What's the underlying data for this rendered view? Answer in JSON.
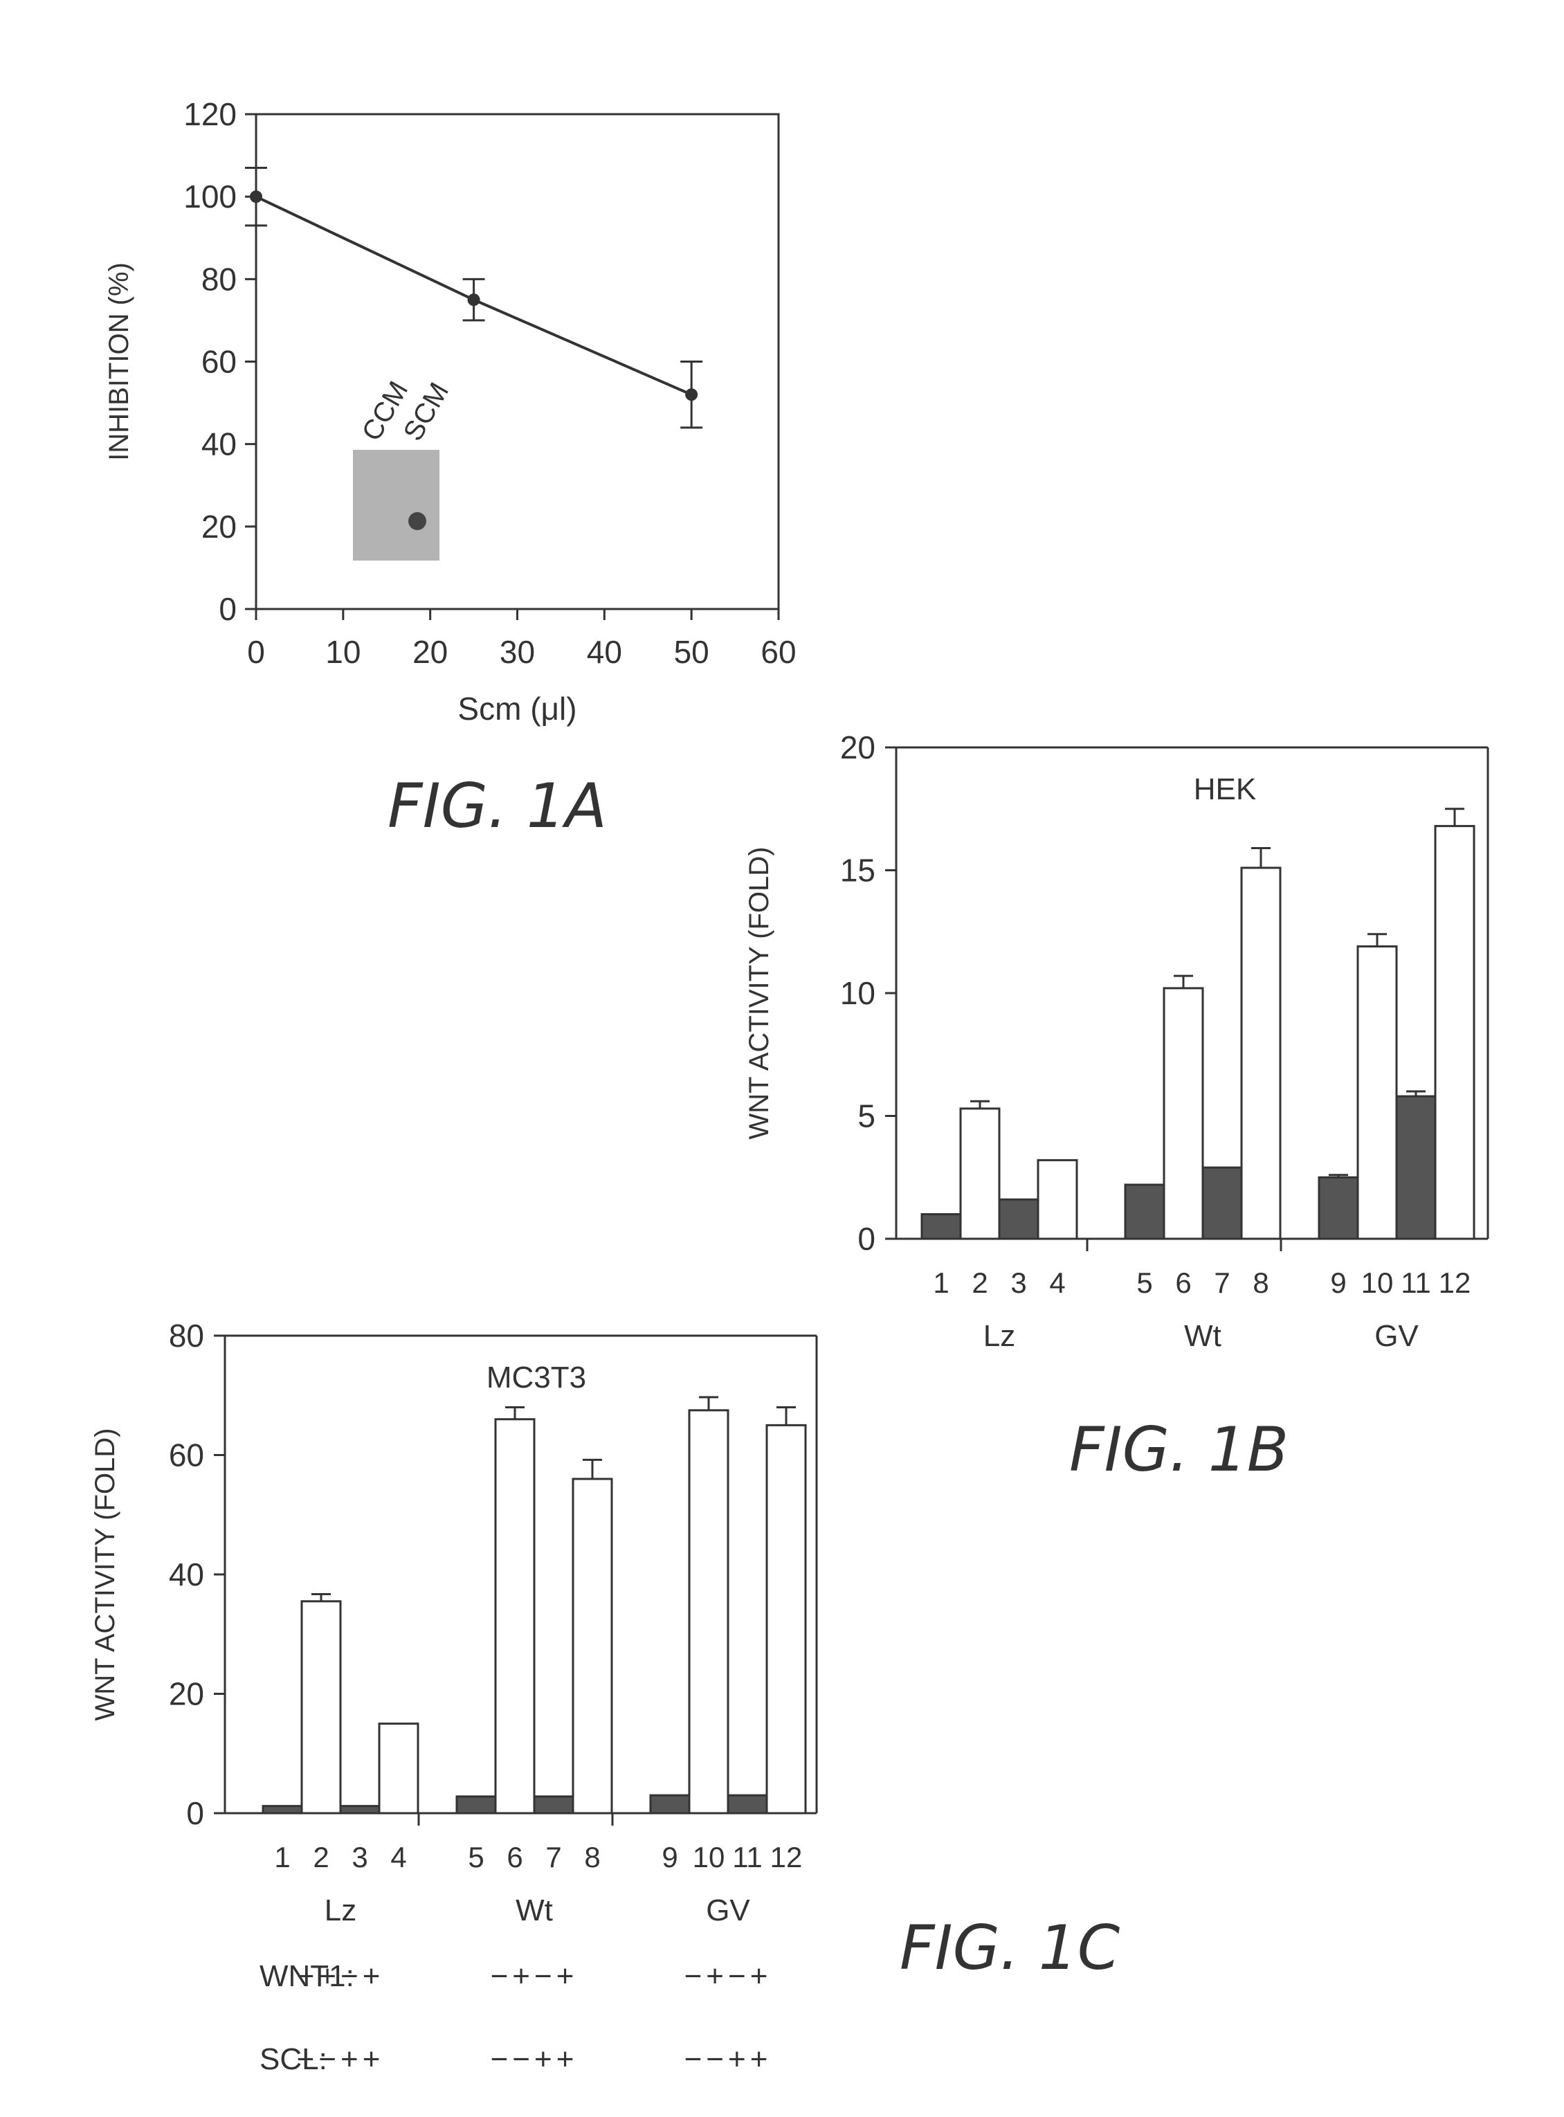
{
  "chart_data": [
    {
      "type": "line",
      "figure_label": "FIG. 1A",
      "xlabel": "Scm (μl)",
      "ylabel": "INHIBITION (%)",
      "xlim": [
        0,
        60
      ],
      "ylim": [
        0,
        120
      ],
      "xticks": [
        "0",
        "10",
        "20",
        "30",
        "40",
        "50",
        "60"
      ],
      "yticks": [
        "0",
        "20",
        "40",
        "60",
        "80",
        "100",
        "120"
      ],
      "x": [
        0,
        25,
        50
      ],
      "series": [
        {
          "values": [
            100,
            75,
            52
          ],
          "error": [
            7,
            5,
            8
          ]
        }
      ],
      "inset_labels": [
        "CCM",
        "SCM"
      ],
      "grid": false
    },
    {
      "type": "bar",
      "figure_label": "FIG. 1B",
      "title": "HEK",
      "ylabel": "WNT ACTIVITY (FOLD)",
      "ylim": [
        0,
        20
      ],
      "yticks": [
        "0",
        "5",
        "10",
        "15",
        "20"
      ],
      "categories": [
        "1",
        "2",
        "3",
        "4",
        "5",
        "6",
        "7",
        "8",
        "9",
        "10",
        "11",
        "12"
      ],
      "groups": [
        "Lz",
        "Wt",
        "GV"
      ],
      "values": [
        1.0,
        5.3,
        1.6,
        3.2,
        2.2,
        10.2,
        2.9,
        15.1,
        2.5,
        11.9,
        5.8,
        16.8
      ],
      "errors": [
        0,
        0.3,
        0,
        0,
        0,
        0.5,
        0,
        0.8,
        0.1,
        0.5,
        0.2,
        0.7
      ],
      "fills": [
        "dark",
        "light",
        "dark",
        "light",
        "dark",
        "light",
        "dark",
        "light",
        "dark",
        "light",
        "dark",
        "light"
      ],
      "grid": false
    },
    {
      "type": "bar",
      "figure_label": "FIG. 1C",
      "title": "MC3T3",
      "ylabel": "WNT ACTIVITY (FOLD)",
      "ylim": [
        0,
        80
      ],
      "yticks": [
        "0",
        "20",
        "40",
        "60",
        "80"
      ],
      "categories": [
        "1",
        "2",
        "3",
        "4",
        "5",
        "6",
        "7",
        "8",
        "9",
        "10",
        "11",
        "12"
      ],
      "groups": [
        "Lz",
        "Wt",
        "GV"
      ],
      "values": [
        1.2,
        35.5,
        1.2,
        15.0,
        2.8,
        66.0,
        2.8,
        56.0,
        3.0,
        67.5,
        3.0,
        65.0
      ],
      "errors": [
        0,
        1.2,
        0,
        0,
        0,
        2.0,
        0,
        3.2,
        0,
        2.2,
        0,
        3.0
      ],
      "fills": [
        "dark",
        "light",
        "dark",
        "light",
        "dark",
        "light",
        "dark",
        "light",
        "dark",
        "light",
        "dark",
        "light"
      ],
      "conditions": [
        {
          "label": "WNT1:",
          "pattern": "−+−+"
        },
        {
          "label": "SCL:",
          "pattern": "−−++"
        }
      ],
      "grid": false
    }
  ],
  "colors": {
    "ink": "#333333",
    "dark_bar": "#555555",
    "light_bar": "#ffffff",
    "inset": "#9a9a9a"
  },
  "labels": {
    "fig1a": "FIG.  1A",
    "fig1b": "FIG.  1B",
    "fig1c": "FIG.  1C"
  }
}
